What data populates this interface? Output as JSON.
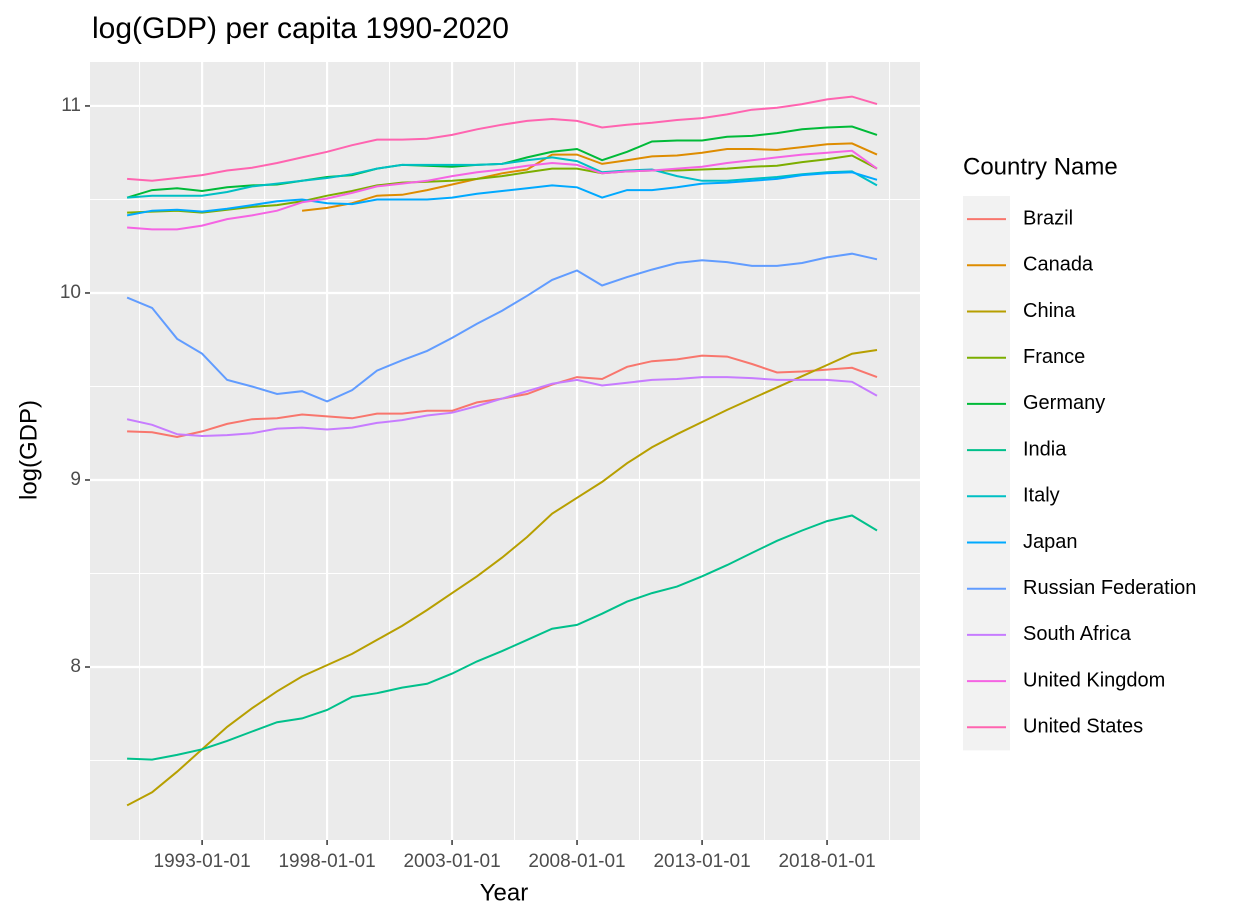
{
  "chart_data": {
    "type": "line",
    "title": "log(GDP) per capita 1990-2020",
    "x_label": "Year",
    "y_label": "log(GDP)",
    "legend_title": "Country Name",
    "legend": "right",
    "grid": true,
    "x": [
      "1990-01-01",
      "1991-01-01",
      "1992-01-01",
      "1993-01-01",
      "1994-01-01",
      "1995-01-01",
      "1996-01-01",
      "1997-01-01",
      "1998-01-01",
      "1999-01-01",
      "2000-01-01",
      "2001-01-01",
      "2002-01-01",
      "2003-01-01",
      "2004-01-01",
      "2005-01-01",
      "2006-01-01",
      "2007-01-01",
      "2008-01-01",
      "2009-01-01",
      "2010-01-01",
      "2011-01-01",
      "2012-01-01",
      "2013-01-01",
      "2014-01-01",
      "2015-01-01",
      "2016-01-01",
      "2017-01-01",
      "2018-01-01",
      "2019-01-01",
      "2020-01-01"
    ],
    "xlim": [
      "1988-07-08",
      "2021-09-20"
    ],
    "xticks": [
      "1993-01-01",
      "1998-01-01",
      "2003-01-01",
      "2008-01-01",
      "2013-01-01",
      "2018-01-01"
    ],
    "minor_xticks": [
      "1990-07-02",
      "1995-07-02",
      "2000-07-02",
      "2005-07-02",
      "2010-07-02",
      "2015-07-02",
      "2020-07-02"
    ],
    "ylim": [
      7.075,
      11.235
    ],
    "yticks": [
      8,
      9,
      10,
      11
    ],
    "minor_yticks": [
      7.5,
      8.5,
      9.5,
      10.5
    ],
    "series": [
      {
        "name": "Brazil",
        "color": "#F8766D",
        "values": [
          9.26,
          9.255,
          9.23,
          9.26,
          9.3,
          9.325,
          9.33,
          9.35,
          9.34,
          9.33,
          9.355,
          9.355,
          9.37,
          9.37,
          9.415,
          9.435,
          9.46,
          9.51,
          9.55,
          9.54,
          9.605,
          9.635,
          9.645,
          9.665,
          9.66,
          9.62,
          9.575,
          9.58,
          9.59,
          9.6,
          9.55
        ]
      },
      {
        "name": "Canada",
        "color": "#DE8C00",
        "values": [
          null,
          null,
          null,
          null,
          null,
          null,
          null,
          10.44,
          10.455,
          10.48,
          10.52,
          10.525,
          10.55,
          10.58,
          10.61,
          10.64,
          10.66,
          10.74,
          10.74,
          10.69,
          10.71,
          10.73,
          10.735,
          10.75,
          10.77,
          10.77,
          10.765,
          10.78,
          10.795,
          10.8,
          10.74
        ]
      },
      {
        "name": "China",
        "color": "#B79F00",
        "values": [
          7.26,
          7.33,
          7.44,
          7.56,
          7.68,
          7.78,
          7.87,
          7.95,
          8.01,
          8.07,
          8.145,
          8.22,
          8.305,
          8.395,
          8.485,
          8.585,
          8.695,
          8.82,
          8.905,
          8.99,
          9.09,
          9.175,
          9.245,
          9.31,
          9.375,
          9.435,
          9.495,
          9.555,
          9.615,
          9.675,
          9.695
        ]
      },
      {
        "name": "France",
        "color": "#7CAE00",
        "values": [
          10.43,
          10.435,
          10.44,
          10.43,
          10.445,
          10.46,
          10.47,
          10.49,
          10.52,
          10.545,
          10.575,
          10.59,
          10.595,
          10.6,
          10.61,
          10.625,
          10.645,
          10.665,
          10.665,
          10.64,
          10.65,
          10.655,
          10.655,
          10.66,
          10.665,
          10.675,
          10.68,
          10.7,
          10.715,
          10.735,
          10.665
        ]
      },
      {
        "name": "Germany",
        "color": "#00BA38",
        "values": [
          10.51,
          10.55,
          10.56,
          10.545,
          10.565,
          10.575,
          10.58,
          10.6,
          10.62,
          10.63,
          10.665,
          10.685,
          10.68,
          10.675,
          10.685,
          10.69,
          10.725,
          10.755,
          10.77,
          10.71,
          10.755,
          10.81,
          10.815,
          10.815,
          10.835,
          10.84,
          10.855,
          10.875,
          10.885,
          10.89,
          10.845
        ]
      },
      {
        "name": "India",
        "color": "#00C08B",
        "values": [
          7.51,
          7.505,
          7.53,
          7.56,
          7.605,
          7.655,
          7.705,
          7.725,
          7.77,
          7.84,
          7.86,
          7.89,
          7.91,
          7.965,
          8.03,
          8.085,
          8.145,
          8.205,
          8.225,
          8.285,
          8.35,
          8.395,
          8.43,
          8.485,
          8.545,
          8.61,
          8.675,
          8.73,
          8.78,
          8.81,
          8.73
        ]
      },
      {
        "name": "Italy",
        "color": "#00BFC4",
        "values": [
          10.51,
          10.52,
          10.52,
          10.52,
          10.54,
          10.57,
          10.585,
          10.6,
          10.615,
          10.635,
          10.665,
          10.685,
          10.685,
          10.685,
          10.685,
          10.69,
          10.71,
          10.725,
          10.705,
          10.645,
          10.655,
          10.66,
          10.625,
          10.6,
          10.6,
          10.61,
          10.62,
          10.635,
          10.645,
          10.65,
          10.575
        ]
      },
      {
        "name": "Japan",
        "color": "#00A9FF",
        "values": [
          10.415,
          10.44,
          10.445,
          10.435,
          10.45,
          10.47,
          10.49,
          10.5,
          10.48,
          10.475,
          10.5,
          10.5,
          10.5,
          10.51,
          10.53,
          10.545,
          10.56,
          10.575,
          10.565,
          10.51,
          10.55,
          10.55,
          10.565,
          10.585,
          10.59,
          10.6,
          10.61,
          10.63,
          10.64,
          10.645,
          10.605
        ]
      },
      {
        "name": "Russian Federation",
        "color": "#619CFF",
        "values": [
          9.975,
          9.92,
          9.755,
          9.675,
          9.535,
          9.5,
          9.46,
          9.475,
          9.42,
          9.48,
          9.585,
          9.64,
          9.69,
          9.76,
          9.835,
          9.905,
          9.985,
          10.07,
          10.12,
          10.04,
          10.085,
          10.125,
          10.16,
          10.175,
          10.165,
          10.145,
          10.145,
          10.16,
          10.19,
          10.21,
          10.18
        ]
      },
      {
        "name": "South Africa",
        "color": "#C77CFF",
        "values": [
          9.325,
          9.295,
          9.245,
          9.235,
          9.24,
          9.25,
          9.275,
          9.28,
          9.27,
          9.28,
          9.305,
          9.32,
          9.345,
          9.36,
          9.395,
          9.435,
          9.475,
          9.515,
          9.535,
          9.505,
          9.52,
          9.535,
          9.54,
          9.55,
          9.55,
          9.545,
          9.535,
          9.535,
          9.535,
          9.525,
          9.45
        ]
      },
      {
        "name": "United Kingdom",
        "color": "#F564E3",
        "values": [
          10.35,
          10.34,
          10.34,
          10.36,
          10.395,
          10.415,
          10.44,
          10.485,
          10.505,
          10.535,
          10.57,
          10.585,
          10.6,
          10.625,
          10.645,
          10.66,
          10.68,
          10.695,
          10.685,
          10.64,
          10.65,
          10.655,
          10.665,
          10.675,
          10.695,
          10.71,
          10.725,
          10.74,
          10.75,
          10.76,
          10.665
        ]
      },
      {
        "name": "United States",
        "color": "#FF64B0",
        "values": [
          10.61,
          10.6,
          10.615,
          10.63,
          10.655,
          10.67,
          10.695,
          10.725,
          10.755,
          10.79,
          10.82,
          10.82,
          10.825,
          10.845,
          10.875,
          10.9,
          10.92,
          10.93,
          10.92,
          10.885,
          10.9,
          10.91,
          10.925,
          10.935,
          10.955,
          10.98,
          10.99,
          11.01,
          11.035,
          11.05,
          11.01
        ]
      }
    ]
  }
}
